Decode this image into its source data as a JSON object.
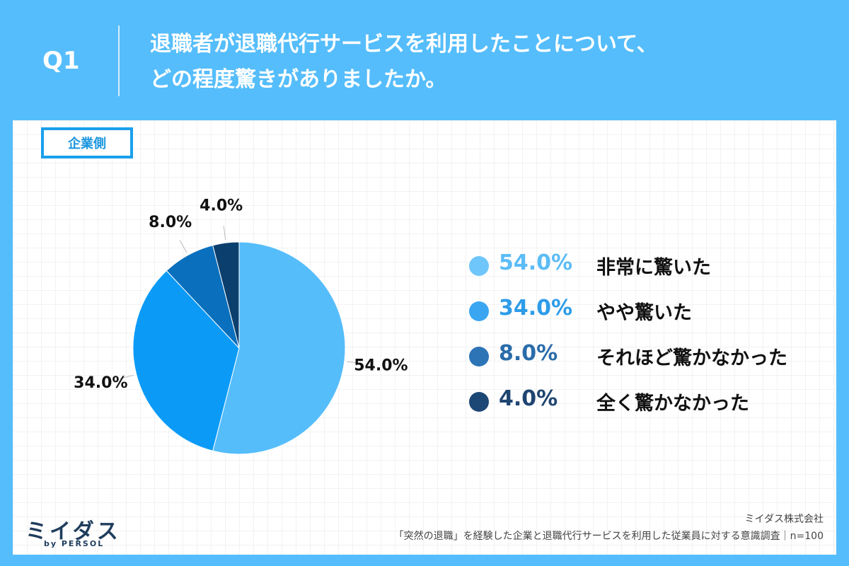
{
  "header": {
    "q_label": "Q1",
    "question_line1": "退職者が退職代行サービスを利用したことについて、",
    "question_line2": "どの程度驚きがありましたか。"
  },
  "segment_tag": "企業側",
  "chart_data": {
    "type": "pie",
    "categories": [
      "非常に驚いた",
      "やや驚いた",
      "それほど驚かなかった",
      "全く驚かなかった"
    ],
    "values": [
      54.0,
      34.0,
      8.0,
      4.0
    ],
    "slice_labels": [
      "54.0%",
      "34.0%",
      "8.0%",
      "4.0%"
    ],
    "colors": [
      "#56bdfb",
      "#0b9bf7",
      "#0a6fbd",
      "#0b3f6e"
    ],
    "legend_position": "right"
  },
  "legend": {
    "items": [
      {
        "pct": "54.0%",
        "label": "非常に驚いた",
        "dot_color": "#6fc6fb",
        "pct_color": "#5cbcf6"
      },
      {
        "pct": "34.0%",
        "label": "やや驚いた",
        "dot_color": "#3aa6f2",
        "pct_color": "#2e9ce8"
      },
      {
        "pct": "8.0%",
        "label": "それほど驚かなかった",
        "dot_color": "#2d74b6",
        "pct_color": "#2a6cab"
      },
      {
        "pct": "4.0%",
        "label": "全く驚かなかった",
        "dot_color": "#1d4775",
        "pct_color": "#1f4470"
      }
    ]
  },
  "logo": {
    "main": "ミイダス",
    "sub": "by PERSOL"
  },
  "credit": {
    "company": "ミイダス株式会社",
    "survey": "「突然の退職」を経験した企業と退職代行サービスを利用した従業員に対する意識調査｜n=100"
  }
}
